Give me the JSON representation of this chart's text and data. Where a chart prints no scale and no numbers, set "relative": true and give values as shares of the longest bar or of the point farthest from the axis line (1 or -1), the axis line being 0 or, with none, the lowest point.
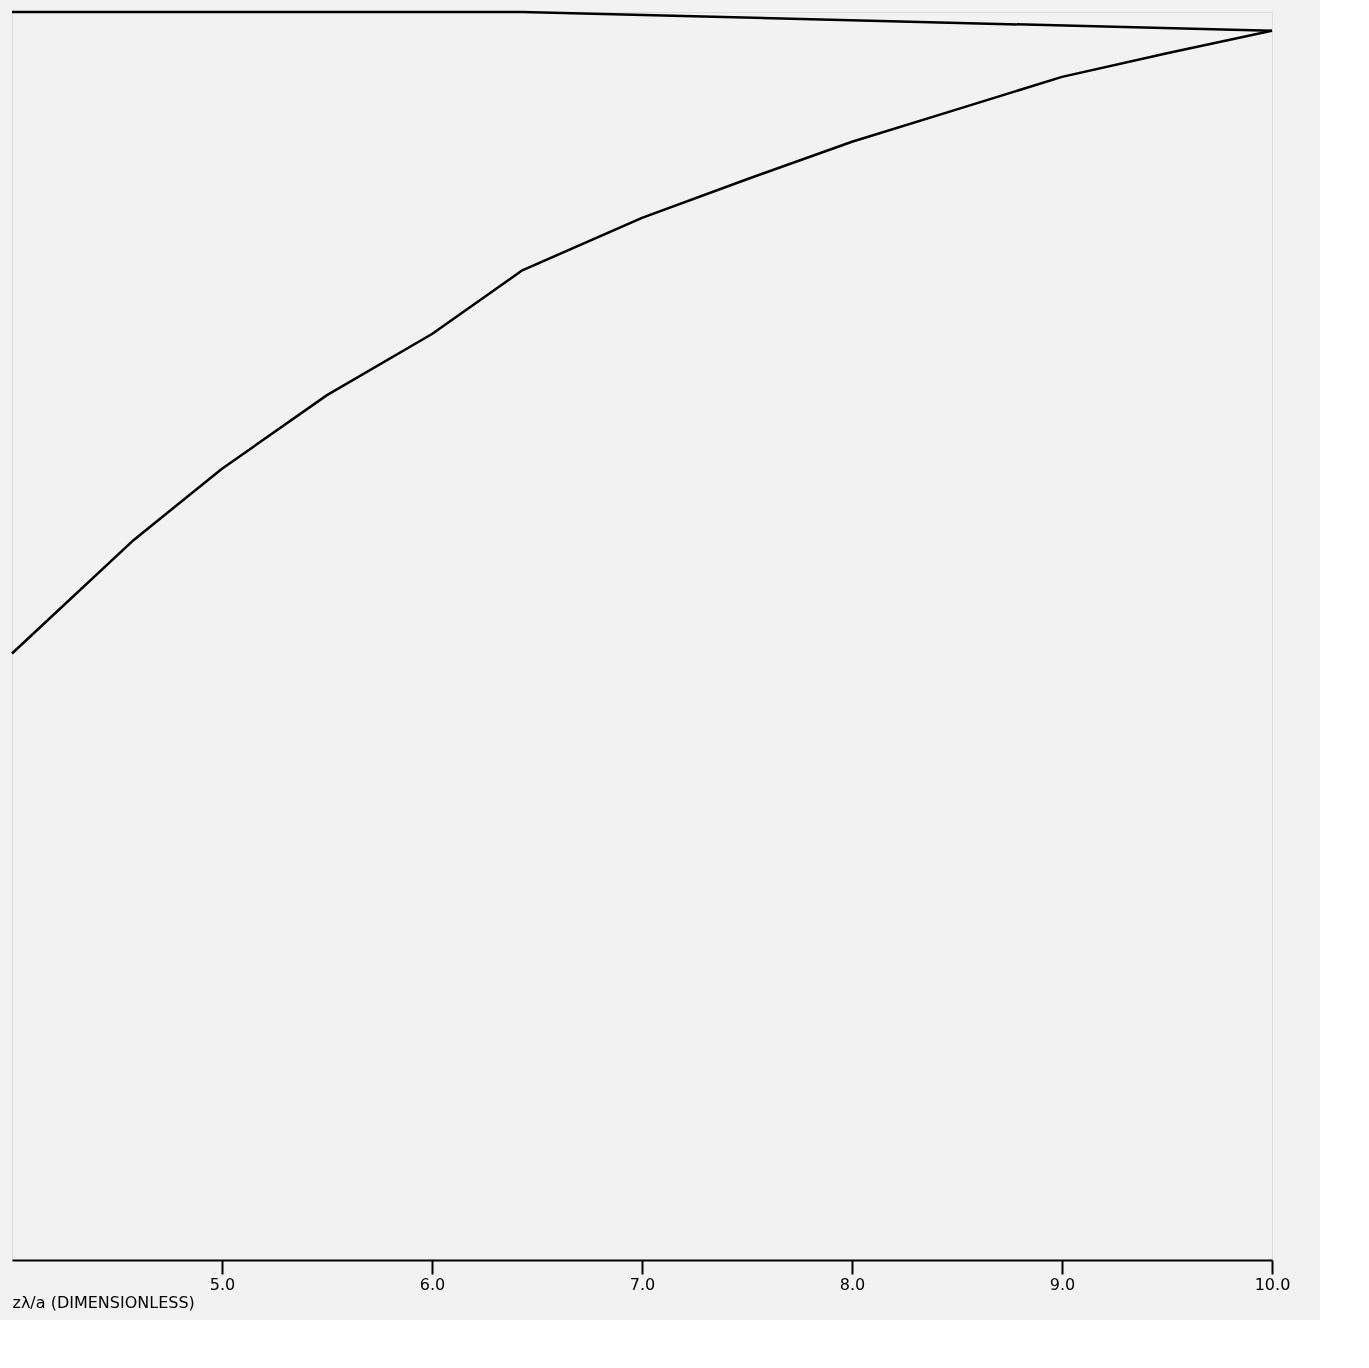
{
  "chart_data": {
    "type": "line",
    "relative": true,
    "xlabel": "zλ/a (DIMENSIONLESS)",
    "xlim": [
      4.0,
      10.0
    ],
    "xticks": [
      {
        "value": 5,
        "label": "5.0"
      },
      {
        "value": 6,
        "label": "6.0"
      },
      {
        "value": 7,
        "label": "7.0"
      },
      {
        "value": 8,
        "label": "8.0"
      },
      {
        "value": 9,
        "label": "9.0"
      },
      {
        "value": 10,
        "label": "10.0"
      }
    ],
    "grid": false,
    "legend": false,
    "marker": "none",
    "line_style": "solid",
    "series": [
      {
        "color": "#000000",
        "x": [
          4.0,
          6.43,
          10.0
        ],
        "values": [
          1.0,
          1.0,
          0.985
        ]
      },
      {
        "color": "#000000",
        "x": [
          4.0,
          4.58,
          5.0,
          5.5,
          6.0,
          6.43,
          7.0,
          7.5,
          8.0,
          8.5,
          9.0,
          9.5,
          10.0
        ],
        "values": [
          0.486,
          0.577,
          0.634,
          0.693,
          0.742,
          0.793,
          0.835,
          0.866,
          0.896,
          0.922,
          0.948,
          0.967,
          0.985
        ]
      }
    ]
  }
}
